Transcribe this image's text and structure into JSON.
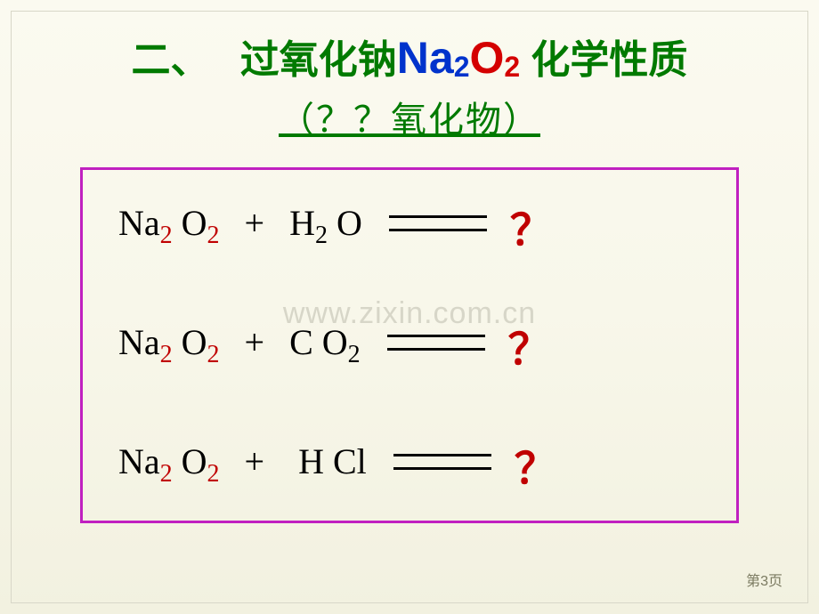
{
  "title": {
    "prefix": "二、　 过氧化钠",
    "formula_na": "Na",
    "formula_na_sub": "2",
    "formula_o": "O",
    "formula_o_sub": "2",
    "suffix": "  化学性质"
  },
  "subtitle": "（？？氧化物）",
  "watermark": "www.zixin.com.cn",
  "pagenum": "第3页",
  "box_border_color": "#c020c0",
  "question_color": "#c00000",
  "equations": [
    {
      "lhs_a": "Na",
      "lhs_a_sub": "2",
      "lhs_b": "O",
      "lhs_b_sub": "2",
      "rhs_a": "H",
      "rhs_a_sub": "2",
      "rhs_b": "O",
      "rhs_b_sub": "",
      "product": "？"
    },
    {
      "lhs_a": "Na",
      "lhs_a_sub": "2",
      "lhs_b": "O",
      "lhs_b_sub": "2",
      "rhs_a": "C",
      "rhs_a_sub": "",
      "rhs_b": "O",
      "rhs_b_sub": "2",
      "product": "？"
    },
    {
      "lhs_a": "Na",
      "lhs_a_sub": "2",
      "lhs_b": "O",
      "lhs_b_sub": "2",
      "rhs_a": "H",
      "rhs_a_sub": "",
      "rhs_b": "Cl",
      "rhs_b_sub": "",
      "product": "？"
    }
  ]
}
